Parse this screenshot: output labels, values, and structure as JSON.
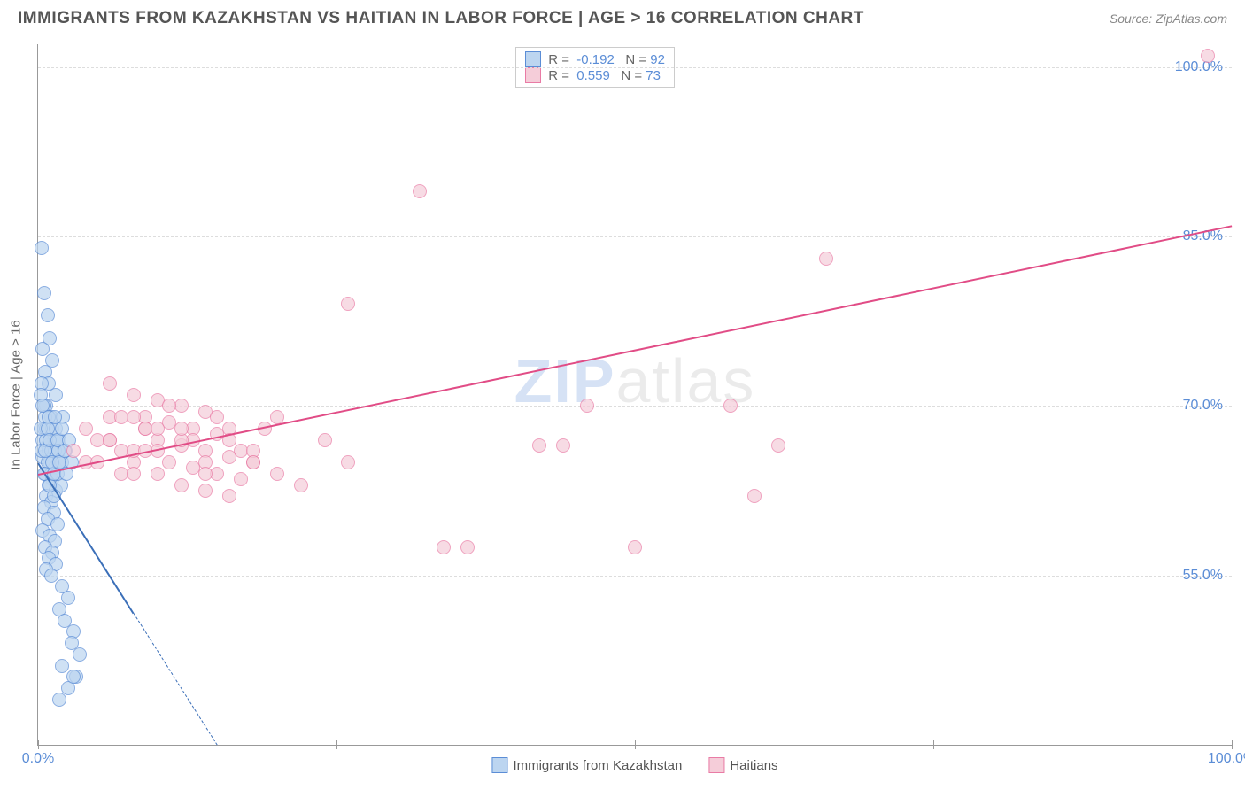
{
  "title": "IMMIGRANTS FROM KAZAKHSTAN VS HAITIAN IN LABOR FORCE | AGE > 16 CORRELATION CHART",
  "source_label": "Source: ZipAtlas.com",
  "watermark": {
    "part1": "ZIP",
    "part2": "atlas"
  },
  "chart": {
    "type": "scatter",
    "yaxis_label": "In Labor Force | Age > 16",
    "background_color": "#ffffff",
    "grid_color": "#dddddd",
    "xlim": [
      0,
      100
    ],
    "ylim": [
      40,
      102
    ],
    "ytick_values": [
      55.0,
      70.0,
      85.0,
      100.0
    ],
    "ytick_labels": [
      "55.0%",
      "70.0%",
      "85.0%",
      "100.0%"
    ],
    "xtick_label_left": "0.0%",
    "xtick_label_right": "100.0%",
    "xtick_marks": [
      0,
      25,
      50,
      75,
      100
    ],
    "series": [
      {
        "name": "Immigrants from Kazakhstan",
        "fill": "#bcd5f0",
        "stroke": "#5b8dd6",
        "trend_color": "#3b6fb8",
        "R": "-0.192",
        "N": "92",
        "trend": {
          "x1": 0,
          "y1": 65,
          "x2": 15,
          "y2": 40,
          "dashed_after_x": 8
        },
        "points": [
          [
            0.3,
            84
          ],
          [
            0.5,
            80
          ],
          [
            0.8,
            78
          ],
          [
            1.0,
            76
          ],
          [
            0.4,
            75
          ],
          [
            1.2,
            74
          ],
          [
            0.6,
            73
          ],
          [
            0.9,
            72
          ],
          [
            1.5,
            71
          ],
          [
            0.7,
            70
          ],
          [
            1.1,
            69
          ],
          [
            0.5,
            68
          ],
          [
            1.3,
            67
          ],
          [
            0.8,
            66.5
          ],
          [
            1.6,
            66
          ],
          [
            0.4,
            65.5
          ],
          [
            1.0,
            65
          ],
          [
            1.4,
            64.5
          ],
          [
            0.6,
            64
          ],
          [
            1.2,
            63.5
          ],
          [
            0.9,
            63
          ],
          [
            1.5,
            62.5
          ],
          [
            0.7,
            62
          ],
          [
            1.1,
            61.5
          ],
          [
            0.5,
            61
          ],
          [
            1.3,
            60.5
          ],
          [
            0.8,
            60
          ],
          [
            1.6,
            59.5
          ],
          [
            0.4,
            59
          ],
          [
            1.0,
            58.5
          ],
          [
            1.4,
            58
          ],
          [
            0.6,
            57.5
          ],
          [
            1.2,
            57
          ],
          [
            0.9,
            56.5
          ],
          [
            1.5,
            56
          ],
          [
            0.7,
            55.5
          ],
          [
            1.1,
            55
          ],
          [
            2.0,
            54
          ],
          [
            2.5,
            53
          ],
          [
            1.8,
            52
          ],
          [
            2.2,
            51
          ],
          [
            3.0,
            50
          ],
          [
            2.8,
            49
          ],
          [
            3.5,
            48
          ],
          [
            2.0,
            47
          ],
          [
            3.2,
            46
          ],
          [
            2.5,
            45
          ],
          [
            1.8,
            44
          ],
          [
            0.3,
            72
          ],
          [
            0.5,
            70
          ],
          [
            0.7,
            68
          ],
          [
            0.9,
            66
          ],
          [
            1.1,
            64
          ],
          [
            1.3,
            62
          ],
          [
            1.5,
            67
          ],
          [
            1.7,
            65
          ],
          [
            1.9,
            63
          ],
          [
            2.1,
            69
          ],
          [
            2.3,
            66
          ],
          [
            0.2,
            71
          ],
          [
            0.4,
            67
          ],
          [
            0.6,
            69
          ],
          [
            0.8,
            65
          ],
          [
            1.0,
            63
          ],
          [
            1.2,
            68
          ],
          [
            1.4,
            66
          ],
          [
            1.6,
            64
          ],
          [
            1.8,
            67
          ],
          [
            2.0,
            65
          ],
          [
            0.3,
            66
          ],
          [
            0.5,
            64
          ],
          [
            0.7,
            67
          ],
          [
            0.9,
            69
          ],
          [
            1.1,
            66
          ],
          [
            1.3,
            64
          ],
          [
            1.5,
            68
          ],
          [
            1.7,
            66
          ],
          [
            0.2,
            68
          ],
          [
            0.4,
            70
          ],
          [
            0.6,
            66
          ],
          [
            0.8,
            68
          ],
          [
            1.0,
            67
          ],
          [
            1.2,
            65
          ],
          [
            1.4,
            69
          ],
          [
            1.6,
            67
          ],
          [
            1.8,
            65
          ],
          [
            2.0,
            68
          ],
          [
            2.2,
            66
          ],
          [
            2.4,
            64
          ],
          [
            2.6,
            67
          ],
          [
            2.8,
            65
          ],
          [
            3.0,
            46
          ]
        ]
      },
      {
        "name": "Haitians",
        "fill": "#f5cdd9",
        "stroke": "#e97ba5",
        "trend_color": "#e14c86",
        "R": "0.559",
        "N": "73",
        "trend": {
          "x1": 0,
          "y1": 64,
          "x2": 100,
          "y2": 86,
          "dashed_after_x": 100
        },
        "points": [
          [
            98,
            101
          ],
          [
            32,
            89
          ],
          [
            66,
            83
          ],
          [
            26,
            79
          ],
          [
            6,
            72
          ],
          [
            8,
            71
          ],
          [
            10,
            70.5
          ],
          [
            12,
            70
          ],
          [
            14,
            69.5
          ],
          [
            9,
            69
          ],
          [
            11,
            68.5
          ],
          [
            13,
            68
          ],
          [
            15,
            67.5
          ],
          [
            10,
            67
          ],
          [
            12,
            66.5
          ],
          [
            14,
            66
          ],
          [
            16,
            65.5
          ],
          [
            11,
            65
          ],
          [
            13,
            64.5
          ],
          [
            15,
            64
          ],
          [
            17,
            63.5
          ],
          [
            12,
            63
          ],
          [
            14,
            62.5
          ],
          [
            16,
            62
          ],
          [
            18,
            65
          ],
          [
            7,
            66
          ],
          [
            9,
            68
          ],
          [
            11,
            70
          ],
          [
            13,
            67
          ],
          [
            15,
            69
          ],
          [
            17,
            66
          ],
          [
            19,
            68
          ],
          [
            8,
            65
          ],
          [
            10,
            64
          ],
          [
            12,
            67
          ],
          [
            14,
            65
          ],
          [
            16,
            68
          ],
          [
            18,
            66
          ],
          [
            20,
            64
          ],
          [
            6,
            67
          ],
          [
            8,
            69
          ],
          [
            10,
            66
          ],
          [
            12,
            68
          ],
          [
            14,
            64
          ],
          [
            16,
            67
          ],
          [
            18,
            65
          ],
          [
            20,
            69
          ],
          [
            22,
            63
          ],
          [
            24,
            67
          ],
          [
            26,
            65
          ],
          [
            34,
            57.5
          ],
          [
            36,
            57.5
          ],
          [
            42,
            66.5
          ],
          [
            44,
            66.5
          ],
          [
            46,
            70
          ],
          [
            50,
            57.5
          ],
          [
            58,
            70
          ],
          [
            60,
            62
          ],
          [
            62,
            66.5
          ],
          [
            4,
            65
          ],
          [
            5,
            67
          ],
          [
            6,
            69
          ],
          [
            7,
            64
          ],
          [
            8,
            66
          ],
          [
            9,
            68
          ],
          [
            3,
            66
          ],
          [
            4,
            68
          ],
          [
            5,
            65
          ],
          [
            6,
            67
          ],
          [
            7,
            69
          ],
          [
            8,
            64
          ],
          [
            9,
            66
          ],
          [
            10,
            68
          ]
        ]
      }
    ]
  }
}
